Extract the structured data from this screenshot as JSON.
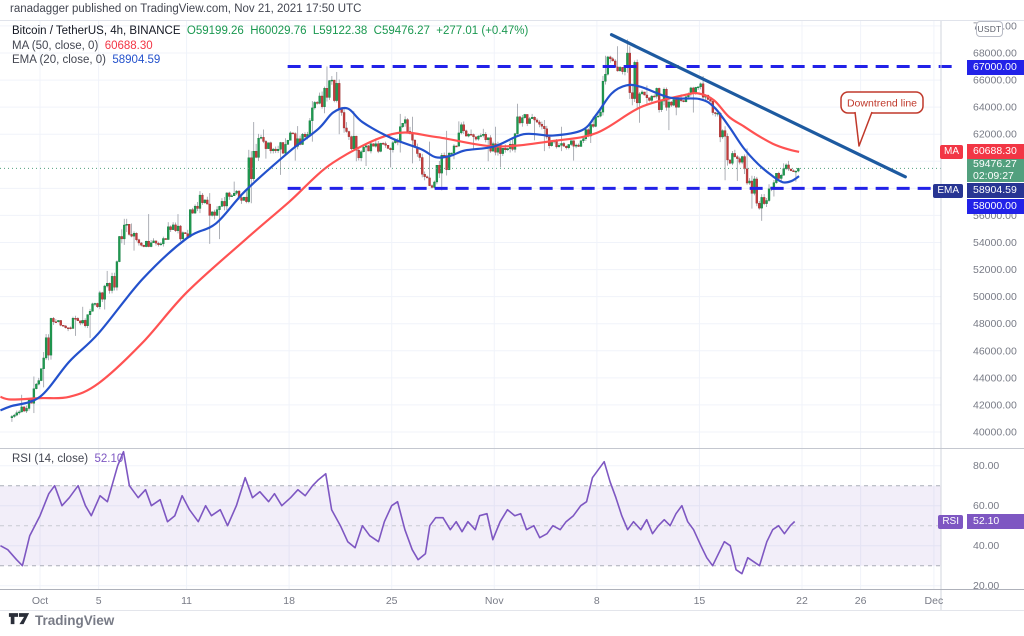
{
  "header": {
    "attribution": "ranadagger published on TradingView.com, Nov 21, 2021 17:50 UTC"
  },
  "watermark": {
    "logo_text": "TradingView"
  },
  "main_legend": {
    "symbol": "Bitcoin / TetherUS, 4h, BINANCE",
    "ohlc": "O59199.26  H60029.76  L59122.38  C59476.27  +277.01 (+0.47%)",
    "ma_label": "MA (50, close, 0)",
    "ma_value": "60688.30",
    "ema_label": "EMA (20, close, 0)",
    "ema_value": "58904.59"
  },
  "rsi_legend": {
    "label": "RSI (14, close)",
    "value": "52.10"
  },
  "axis": {
    "currency_button": "USDT",
    "boxes": {
      "ma_badge": "MA",
      "ma_value": "60688.30",
      "current_price": "59476.27",
      "countdown": "02:09:27",
      "ema_badge": "EMA",
      "ema_value": "58904.59",
      "upper_level": "67000.00",
      "lower_level": "58000.00",
      "rsi_badge": "RSI",
      "rsi_value": "52.10"
    }
  },
  "annotations": {
    "callout_text": "Downtrend line"
  },
  "colors": {
    "up": "#1f9950",
    "up_border": "#0e7a3b",
    "down": "#c43c3c",
    "down_border": "#9a2f2f",
    "wick": "#999ca4",
    "ma": "#ff5252",
    "ema": "#2351cc",
    "trend": "#1d5aa0",
    "level": "#2222e8",
    "level_box": "#2222e8",
    "ema_box": "#283593",
    "ma_box": "#f23645",
    "cur_box": "#52a07e",
    "rsi": "#7e57c2",
    "rsi_band": "rgba(126,87,194,0.10)",
    "band_edge": "#a9adb8",
    "band_mid": "#c7cad2",
    "grid": "#f0f3fa",
    "axis_text": "#787b86",
    "callout": "#c0392b",
    "current": "#52a07e"
  },
  "chart_data": {
    "type": "candlestick",
    "title": "Bitcoin / TetherUS, 4h, BINANCE",
    "interval": "4h",
    "x_axis": {
      "unit": "days since Oct 1 2021 (label,day)",
      "ticks": [
        [
          "Oct",
          0
        ],
        [
          "5",
          4
        ],
        [
          "11",
          10
        ],
        [
          "18",
          17
        ],
        [
          "25",
          24
        ],
        [
          "Nov",
          31
        ],
        [
          "8",
          38
        ],
        [
          "15",
          45
        ],
        [
          "22",
          52
        ],
        [
          "26",
          56
        ],
        [
          "Dec",
          61
        ]
      ]
    },
    "price_axis": {
      "ticks": [
        40000,
        42000,
        44000,
        46000,
        48000,
        50000,
        52000,
        54000,
        56000,
        58000,
        60000,
        62000,
        64000,
        66000,
        68000,
        70000
      ],
      "range_top": 70363,
      "range_bottom": 38825
    },
    "current_price": 59476.27,
    "levels": [
      {
        "price": 67000,
        "d1": 16.9,
        "d2": 62.45
      },
      {
        "price": 58000,
        "d1": 16.9,
        "d2": 62.1
      }
    ],
    "trendline": {
      "d1": 39.0,
      "p1": 69350,
      "d2": 59.05,
      "p2": 58850
    },
    "series": {
      "daily_ohlc_note": "[dayOffset, open, high, low, close] ~4h candles synthesized from daily path",
      "daily_ohlc": [
        [
          -2,
          41050,
          42750,
          40750,
          41550
        ],
        [
          -1,
          41550,
          44100,
          41400,
          43800
        ],
        [
          0,
          43800,
          48500,
          43300,
          48150
        ],
        [
          1,
          48150,
          48350,
          47450,
          47700
        ],
        [
          2,
          47700,
          49250,
          47100,
          48250
        ],
        [
          3,
          48250,
          49550,
          46950,
          49250
        ],
        [
          4,
          49250,
          51900,
          49050,
          51500
        ],
        [
          5,
          51500,
          55750,
          50450,
          55350
        ],
        [
          6,
          55350,
          55400,
          53400,
          53800
        ],
        [
          7,
          53800,
          56100,
          53650,
          53950
        ],
        [
          8,
          53950,
          55500,
          53700,
          54950
        ],
        [
          9,
          54950,
          56100,
          54100,
          54650
        ],
        [
          10,
          54650,
          57800,
          54350,
          57500
        ],
        [
          11,
          57500,
          57650,
          53900,
          56000
        ],
        [
          12,
          56000,
          57750,
          54250,
          57400
        ],
        [
          13,
          57400,
          58500,
          56850,
          57350
        ],
        [
          14,
          57350,
          62900,
          56900,
          61700
        ],
        [
          15,
          61700,
          62350,
          60200,
          60900
        ],
        [
          16,
          60900,
          61700,
          59000,
          61550
        ],
        [
          17,
          61550,
          62600,
          60050,
          62000
        ],
        [
          18,
          62000,
          64450,
          61450,
          64280
        ],
        [
          19,
          64280,
          67000,
          63550,
          66000
        ],
        [
          20,
          66000,
          66600,
          62000,
          62200
        ],
        [
          21,
          62200,
          63700,
          60000,
          60700
        ],
        [
          22,
          60700,
          61700,
          59650,
          61300
        ],
        [
          23,
          61300,
          61500,
          59550,
          60850
        ],
        [
          24,
          60850,
          63500,
          60650,
          63080
        ],
        [
          25,
          63080,
          63290,
          59850,
          60280
        ],
        [
          26,
          60280,
          61450,
          58000,
          58470
        ],
        [
          27,
          58470,
          62250,
          57850,
          60600
        ],
        [
          28,
          60600,
          62950,
          60150,
          62250
        ],
        [
          29,
          62250,
          62350,
          60850,
          61860
        ],
        [
          30,
          61860,
          62400,
          60000,
          61300
        ],
        [
          31,
          61300,
          62550,
          59550,
          60940
        ],
        [
          32,
          60940,
          64250,
          60650,
          63220
        ],
        [
          33,
          63220,
          63500,
          61550,
          62900
        ],
        [
          34,
          62900,
          63050,
          60750,
          61430
        ],
        [
          35,
          61430,
          62550,
          60750,
          61000
        ],
        [
          36,
          61000,
          61550,
          60050,
          61520
        ],
        [
          37,
          61520,
          63300,
          61350,
          63280
        ],
        [
          38,
          63280,
          67800,
          63250,
          67570
        ],
        [
          39,
          67570,
          68500,
          66350,
          66950
        ],
        [
          40,
          66950,
          69000,
          62850,
          64980
        ],
        [
          41,
          64980,
          65600,
          64150,
          64800
        ],
        [
          42,
          64800,
          65450,
          62300,
          64380
        ],
        [
          43,
          64380,
          64950,
          63400,
          64400
        ],
        [
          44,
          64400,
          65500,
          63600,
          65500
        ],
        [
          45,
          65500,
          66300,
          63400,
          63600
        ],
        [
          46,
          63600,
          63650,
          58600,
          60100
        ],
        [
          47,
          60100,
          60850,
          58550,
          60350
        ],
        [
          48,
          60350,
          60950,
          56500,
          56900
        ],
        [
          49,
          56900,
          58300,
          55600,
          58100
        ],
        [
          50,
          58100,
          59850,
          57400,
          59730
        ],
        [
          51,
          59730,
          60030,
          58500,
          59476.27
        ]
      ],
      "last_day_candles": 5,
      "ma50": [
        [
          -2.7,
          42600
        ],
        [
          -2,
          42400
        ],
        [
          0,
          42500
        ],
        [
          2,
          42600
        ],
        [
          4,
          43600
        ],
        [
          7,
          46600
        ],
        [
          10,
          50300
        ],
        [
          14,
          54200
        ],
        [
          17,
          57000
        ],
        [
          20,
          59900
        ],
        [
          24,
          62000
        ],
        [
          27,
          61800
        ],
        [
          31,
          61100
        ],
        [
          35,
          61500
        ],
        [
          38,
          62100
        ],
        [
          41,
          64000
        ],
        [
          44,
          64900
        ],
        [
          45,
          65000
        ],
        [
          46,
          64500
        ],
        [
          47,
          63300
        ],
        [
          48,
          62600
        ],
        [
          49,
          61900
        ],
        [
          50,
          61300
        ],
        [
          51,
          60900
        ],
        [
          51.8,
          60688.3
        ]
      ],
      "ema20": [
        [
          -2.7,
          41600
        ],
        [
          -2,
          41900
        ],
        [
          0,
          42600
        ],
        [
          2,
          45200
        ],
        [
          4,
          47300
        ],
        [
          7,
          51300
        ],
        [
          10,
          54300
        ],
        [
          12,
          55400
        ],
        [
          14,
          57800
        ],
        [
          17,
          60700
        ],
        [
          19,
          62400
        ],
        [
          20,
          63600
        ],
        [
          21,
          63900
        ],
        [
          22,
          62900
        ],
        [
          24,
          61700
        ],
        [
          26,
          60900
        ],
        [
          27,
          60300
        ],
        [
          28,
          60400
        ],
        [
          29,
          60800
        ],
        [
          31,
          61100
        ],
        [
          33,
          62000
        ],
        [
          35,
          61900
        ],
        [
          37,
          62300
        ],
        [
          38,
          63500
        ],
        [
          39,
          65000
        ],
        [
          40,
          65600
        ],
        [
          41,
          65500
        ],
        [
          43,
          64700
        ],
        [
          45,
          64600
        ],
        [
          46,
          64000
        ],
        [
          47,
          62600
        ],
        [
          48,
          61000
        ],
        [
          49,
          59800
        ],
        [
          50,
          58900
        ],
        [
          50.7,
          58450
        ],
        [
          51.3,
          58550
        ],
        [
          51.8,
          58904.59
        ]
      ]
    },
    "rsi": {
      "type": "line",
      "title": "RSI (14, close)",
      "current": 52.1,
      "ticks": [
        80,
        60,
        40,
        20
      ],
      "band": [
        70,
        30
      ],
      "mid": 50,
      "range_top": 88.3,
      "range_bottom": 18.3,
      "points": [
        [
          -2.7,
          40
        ],
        [
          -2.2,
          38
        ],
        [
          -1.6,
          33
        ],
        [
          -1.2,
          30
        ],
        [
          -0.7,
          45
        ],
        [
          0,
          55
        ],
        [
          0.6,
          66
        ],
        [
          1,
          70
        ],
        [
          1.5,
          60
        ],
        [
          2,
          64
        ],
        [
          2.6,
          70
        ],
        [
          3.1,
          60
        ],
        [
          3.5,
          55
        ],
        [
          4.1,
          65
        ],
        [
          4.6,
          62
        ],
        [
          5.3,
          80
        ],
        [
          5.7,
          87
        ],
        [
          6.1,
          70
        ],
        [
          6.7,
          64
        ],
        [
          7.2,
          68
        ],
        [
          7.6,
          60
        ],
        [
          8.2,
          63
        ],
        [
          8.7,
          52
        ],
        [
          9.2,
          55
        ],
        [
          9.7,
          65
        ],
        [
          10.2,
          58
        ],
        [
          10.8,
          52
        ],
        [
          11.3,
          60
        ],
        [
          11.7,
          55
        ],
        [
          12.3,
          58
        ],
        [
          12.8,
          50
        ],
        [
          13.4,
          60
        ],
        [
          14,
          74
        ],
        [
          14.5,
          64
        ],
        [
          15,
          67
        ],
        [
          15.6,
          62
        ],
        [
          16,
          66
        ],
        [
          16.5,
          60
        ],
        [
          17.1,
          64
        ],
        [
          17.6,
          68
        ],
        [
          18.1,
          65
        ],
        [
          18.6,
          70
        ],
        [
          19,
          73
        ],
        [
          19.5,
          76
        ],
        [
          19.9,
          58
        ],
        [
          20.5,
          50
        ],
        [
          21,
          42
        ],
        [
          21.5,
          39
        ],
        [
          22,
          50
        ],
        [
          22.5,
          45
        ],
        [
          23.1,
          42
        ],
        [
          23.5,
          52
        ],
        [
          24,
          60
        ],
        [
          24.4,
          62
        ],
        [
          24.9,
          48
        ],
        [
          25.4,
          38
        ],
        [
          25.8,
          33
        ],
        [
          26.3,
          36
        ],
        [
          26.6,
          50
        ],
        [
          27,
          54
        ],
        [
          27.5,
          54
        ],
        [
          28,
          48
        ],
        [
          28.4,
          52
        ],
        [
          28.8,
          47
        ],
        [
          29.2,
          52
        ],
        [
          29.7,
          48
        ],
        [
          30,
          55
        ],
        [
          30.5,
          56
        ],
        [
          30.9,
          43
        ],
        [
          31.4,
          52
        ],
        [
          31.9,
          58
        ],
        [
          32.4,
          55
        ],
        [
          32.8,
          56
        ],
        [
          33.2,
          48
        ],
        [
          33.7,
          50
        ],
        [
          34.1,
          44
        ],
        [
          34.6,
          46
        ],
        [
          35,
          50
        ],
        [
          35.5,
          48
        ],
        [
          35.9,
          52
        ],
        [
          36.4,
          55
        ],
        [
          36.9,
          60
        ],
        [
          37.3,
          62
        ],
        [
          37.7,
          74
        ],
        [
          38.1,
          78
        ],
        [
          38.5,
          82
        ],
        [
          38.9,
          72
        ],
        [
          39.3,
          64
        ],
        [
          39.7,
          55
        ],
        [
          40.1,
          48
        ],
        [
          40.5,
          52
        ],
        [
          41,
          48
        ],
        [
          41.4,
          53
        ],
        [
          41.8,
          46
        ],
        [
          42.2,
          50
        ],
        [
          42.6,
          53
        ],
        [
          43,
          50
        ],
        [
          43.4,
          56
        ],
        [
          43.8,
          60
        ],
        [
          44.2,
          52
        ],
        [
          44.6,
          48
        ],
        [
          45.1,
          40
        ],
        [
          45.5,
          34
        ],
        [
          45.9,
          30
        ],
        [
          46.3,
          36
        ],
        [
          46.7,
          42
        ],
        [
          47.1,
          40
        ],
        [
          47.5,
          28
        ],
        [
          47.9,
          26
        ],
        [
          48.3,
          34
        ],
        [
          48.7,
          32
        ],
        [
          49.1,
          30
        ],
        [
          49.6,
          42
        ],
        [
          50,
          48
        ],
        [
          50.4,
          50
        ],
        [
          50.8,
          46
        ],
        [
          51.2,
          50
        ],
        [
          51.5,
          52.1
        ]
      ]
    }
  }
}
